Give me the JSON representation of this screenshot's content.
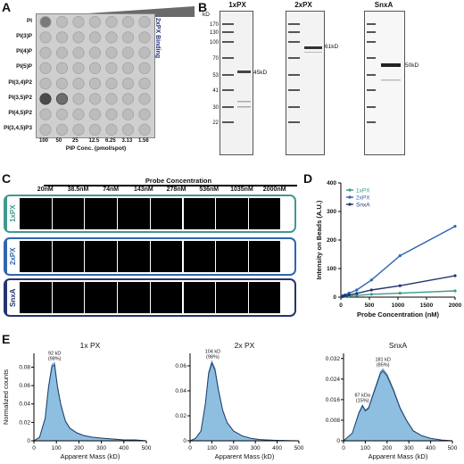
{
  "panels": {
    "a": "A",
    "b": "B",
    "c": "C",
    "d": "D",
    "e": "E"
  },
  "panel_a": {
    "rows": [
      "PI",
      "PI(3)P",
      "PI(4)P",
      "PI(5)P",
      "PI(3,4)P2",
      "PI(3,5)P2",
      "PI(4,5)P2",
      "PI(3,4,5)P3"
    ],
    "side_label": "2xPX Binding",
    "conc_ticks": [
      "100",
      "50",
      "25",
      "12.5",
      "6.25",
      "3.13",
      "1.56"
    ],
    "xlabel": "PIP Conc. (pmol/spot)"
  },
  "panel_b": {
    "kd_label": "kD",
    "markers": [
      "170",
      "130",
      "100",
      "70",
      "53",
      "41",
      "30",
      "22"
    ],
    "gels": [
      {
        "title": "1xPX",
        "title_color": "#3c8f86",
        "band": "45kD"
      },
      {
        "title": "2xPX",
        "title_color": "#2d6fb5",
        "band": "61kD"
      },
      {
        "title": "SnxA",
        "title_color": "#24327a",
        "band": "50kD"
      }
    ]
  },
  "panel_c": {
    "title": "Probe Concentration",
    "concs": [
      "20nM",
      "38.5nM",
      "74nM",
      "143nM",
      "278nM",
      "536nM",
      "1035nM",
      "2000nM"
    ],
    "rows": [
      {
        "label": "1xPX",
        "color": "#3f9a8e"
      },
      {
        "label": "2xPX",
        "color": "#2e66b0"
      },
      {
        "label": "SnxA",
        "color": "#26336f"
      }
    ]
  },
  "chart_data": [
    {
      "type": "line",
      "panel": "D",
      "xlabel": "Probe Concentration (nM)",
      "ylabel": "Intensity on Beads (A.U.)",
      "xlim": [
        0,
        2000
      ],
      "ylim": [
        0,
        400
      ],
      "xticks": [
        "0",
        "500",
        "1000",
        "1500",
        "2000"
      ],
      "yticks": [
        "0",
        "100",
        "200",
        "300",
        "400"
      ],
      "legend": "top-right",
      "series": [
        {
          "name": "1xPX",
          "color": "#3f9a8e",
          "x": [
            20,
            38.5,
            74,
            143,
            278,
            536,
            1035,
            2000
          ],
          "y": [
            1,
            2,
            3,
            4,
            6,
            10,
            14,
            22
          ]
        },
        {
          "name": "2xPX",
          "color": "#2e66b0",
          "x": [
            20,
            38.5,
            74,
            143,
            278,
            536,
            1035,
            2000
          ],
          "y": [
            3,
            5,
            8,
            14,
            25,
            60,
            145,
            248
          ]
        },
        {
          "name": "SnxA",
          "color": "#26336f",
          "x": [
            20,
            38.5,
            74,
            143,
            278,
            536,
            1035,
            2000
          ],
          "y": [
            2,
            3,
            5,
            8,
            13,
            25,
            40,
            75
          ]
        }
      ]
    },
    {
      "type": "area",
      "panel": "E",
      "title": "1x PX",
      "xlabel": "Apparent Mass (kD)",
      "ylabel": "Normalized counts",
      "xlim": [
        0,
        500
      ],
      "ylim": [
        0,
        0.095
      ],
      "xticks": [
        "0",
        "100",
        "200",
        "300",
        "400",
        "500"
      ],
      "yticks": [
        "0",
        "0.02",
        "0.04",
        "0.06",
        "0.08"
      ],
      "peaks": [
        {
          "label": "92 kD",
          "pct": "(98%)",
          "x": 92
        }
      ],
      "x": [
        0,
        25,
        50,
        65,
        80,
        92,
        105,
        120,
        140,
        160,
        190,
        220,
        260,
        300,
        350,
        400,
        450,
        500
      ],
      "y": [
        0,
        0.004,
        0.025,
        0.06,
        0.083,
        0.085,
        0.06,
        0.04,
        0.022,
        0.014,
        0.009,
        0.006,
        0.004,
        0.003,
        0.002,
        0.001,
        0.001,
        0.0
      ]
    },
    {
      "type": "area",
      "panel": "E",
      "title": "2x PX",
      "xlabel": "Apparent Mass (kD)",
      "xlim": [
        0,
        500
      ],
      "ylim": [
        0,
        0.07
      ],
      "xticks": [
        "0",
        "100",
        "200",
        "300",
        "400",
        "500"
      ],
      "yticks": [
        "0",
        "0.02",
        "0.04",
        "0.06"
      ],
      "peaks": [
        {
          "label": "104 kD",
          "pct": "(98%)",
          "x": 104
        }
      ],
      "x": [
        0,
        25,
        50,
        70,
        85,
        100,
        115,
        130,
        150,
        170,
        200,
        240,
        280,
        320,
        380,
        440,
        500
      ],
      "y": [
        0,
        0.002,
        0.008,
        0.03,
        0.055,
        0.064,
        0.058,
        0.042,
        0.025,
        0.015,
        0.008,
        0.004,
        0.002,
        0.001,
        0.0005,
        0.0002,
        0.0
      ]
    },
    {
      "type": "area",
      "panel": "E",
      "title": "SnxA",
      "xlabel": "Apparent Mass (kD)",
      "xlim": [
        0,
        500
      ],
      "ylim": [
        0,
        0.034
      ],
      "xticks": [
        "0",
        "100",
        "200",
        "300",
        "400",
        "500"
      ],
      "yticks": [
        "0",
        "0.008",
        "0.016",
        "0.024",
        "0.032"
      ],
      "peaks": [
        {
          "label": "87 kDa",
          "pct": "(15%)",
          "x": 87
        },
        {
          "label": "181 kD",
          "pct": "(85%)",
          "x": 181
        }
      ],
      "x": [
        0,
        40,
        70,
        87,
        100,
        115,
        130,
        150,
        170,
        181,
        200,
        230,
        260,
        290,
        320,
        360,
        400,
        450,
        500
      ],
      "y": [
        0,
        0.003,
        0.011,
        0.014,
        0.012,
        0.013,
        0.017,
        0.022,
        0.027,
        0.028,
        0.026,
        0.02,
        0.013,
        0.008,
        0.004,
        0.002,
        0.001,
        0.0003,
        0.0
      ]
    }
  ]
}
